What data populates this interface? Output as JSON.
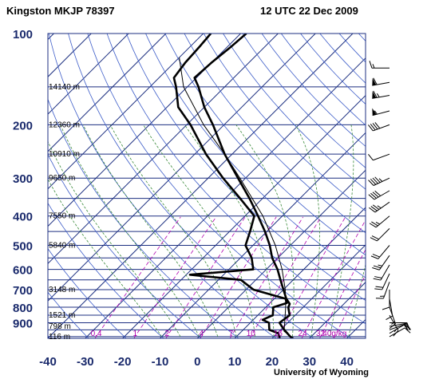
{
  "header": {
    "station": "Kingston MKJP 78397",
    "time": "12 UTC 22 Dec 2009",
    "credit": "University of Wyoming"
  },
  "chart_data": {
    "type": "skew-t log-p sounding",
    "title": "",
    "xlabel": "",
    "ylabel": "",
    "pressure_ticks": [
      100,
      200,
      300,
      400,
      500,
      600,
      700,
      800,
      900
    ],
    "temperature_ticks": [
      -40,
      -30,
      -20,
      -10,
      0,
      10,
      20,
      30,
      40
    ],
    "pressure_range_hPa": [
      1013,
      100
    ],
    "temperature_range_C_at_bottom": [
      -40,
      45
    ],
    "height_labels": [
      {
        "p": 150,
        "label": "14140 m"
      },
      {
        "p": 200,
        "label": "12360 m"
      },
      {
        "p": 250,
        "label": "10910 m"
      },
      {
        "p": 300,
        "label": "9650 m"
      },
      {
        "p": 400,
        "label": "7550 m"
      },
      {
        "p": 500,
        "label": "5840 m"
      },
      {
        "p": 700,
        "label": "3148 m"
      },
      {
        "p": 850,
        "label": "1521 m"
      },
      {
        "p": 925,
        "label": "798 m"
      },
      {
        "p": 1000,
        "label": "116 m"
      }
    ],
    "mixing_ratio_labels": [
      "0.4",
      "1",
      "2",
      "4",
      "7",
      "10",
      "16",
      "24",
      "32",
      "40g/kg"
    ],
    "mixing_ratio_values": [
      0.4,
      1,
      2,
      4,
      7,
      10,
      16,
      24,
      32,
      40
    ],
    "temperature_profile": [
      {
        "p": 1013,
        "t": 25.6
      },
      {
        "p": 1000,
        "t": 24.4
      },
      {
        "p": 950,
        "t": 21.0
      },
      {
        "p": 925,
        "t": 19.4
      },
      {
        "p": 900,
        "t": 17.8
      },
      {
        "p": 850,
        "t": 18.5
      },
      {
        "p": 800,
        "t": 16.0
      },
      {
        "p": 780,
        "t": 15.5
      },
      {
        "p": 750,
        "t": 13.2
      },
      {
        "p": 700,
        "t": 10.0
      },
      {
        "p": 650,
        "t": 6.6
      },
      {
        "p": 600,
        "t": 3.0
      },
      {
        "p": 550,
        "t": -1.5
      },
      {
        "p": 500,
        "t": -5.5
      },
      {
        "p": 450,
        "t": -10.5
      },
      {
        "p": 400,
        "t": -16.5
      },
      {
        "p": 350,
        "t": -23.5
      },
      {
        "p": 300,
        "t": -32.0
      },
      {
        "p": 250,
        "t": -42.0
      },
      {
        "p": 200,
        "t": -53.0
      },
      {
        "p": 175,
        "t": -60.0
      },
      {
        "p": 150,
        "t": -67.0
      },
      {
        "p": 140,
        "t": -70.5
      },
      {
        "p": 125,
        "t": -70.0
      },
      {
        "p": 110,
        "t": -69.0
      },
      {
        "p": 100,
        "t": -68.5
      }
    ],
    "dewpoint_profile": [
      {
        "p": 1013,
        "t": 22.0
      },
      {
        "p": 1000,
        "t": 21.5
      },
      {
        "p": 975,
        "t": 20.3
      },
      {
        "p": 950,
        "t": 17.0
      },
      {
        "p": 925,
        "t": 16.0
      },
      {
        "p": 900,
        "t": 15.0
      },
      {
        "p": 880,
        "t": 12.5
      },
      {
        "p": 850,
        "t": 14.0
      },
      {
        "p": 800,
        "t": 12.0
      },
      {
        "p": 775,
        "t": 14.5
      },
      {
        "p": 750,
        "t": 13.0
      },
      {
        "p": 700,
        "t": 2.0
      },
      {
        "p": 650,
        "t": -4.0
      },
      {
        "p": 625,
        "t": -19.0
      },
      {
        "p": 600,
        "t": -3.5
      },
      {
        "p": 550,
        "t": -7.0
      },
      {
        "p": 500,
        "t": -12.0
      },
      {
        "p": 450,
        "t": -14.5
      },
      {
        "p": 400,
        "t": -17.5
      },
      {
        "p": 350,
        "t": -26.0
      },
      {
        "p": 300,
        "t": -36.0
      },
      {
        "p": 250,
        "t": -47.0
      },
      {
        "p": 200,
        "t": -59.0
      },
      {
        "p": 175,
        "t": -67.0
      },
      {
        "p": 150,
        "t": -73.0
      },
      {
        "p": 140,
        "t": -76.0
      },
      {
        "p": 125,
        "t": -77.0
      },
      {
        "p": 110,
        "t": -77.5
      },
      {
        "p": 100,
        "t": -78.0
      }
    ],
    "parcel_profile": [
      {
        "p": 1013,
        "t": 25.6
      },
      {
        "p": 960,
        "t": 21.3
      },
      {
        "p": 900,
        "t": 19.2
      },
      {
        "p": 800,
        "t": 15.3
      },
      {
        "p": 700,
        "t": 10.5
      },
      {
        "p": 600,
        "t": 4.2
      },
      {
        "p": 500,
        "t": -4.0
      },
      {
        "p": 400,
        "t": -15.2
      },
      {
        "p": 300,
        "t": -31.5
      },
      {
        "p": 250,
        "t": -42.0
      },
      {
        "p": 200,
        "t": -55.5
      },
      {
        "p": 150,
        "t": -71.0
      },
      {
        "p": 120,
        "t": -80.0
      }
    ],
    "wind_barbs": [
      {
        "p": 130,
        "dir": 270,
        "kt": 15
      },
      {
        "p": 145,
        "dir": 260,
        "kt": 60
      },
      {
        "p": 160,
        "dir": 260,
        "kt": 65
      },
      {
        "p": 180,
        "dir": 255,
        "kt": 55
      },
      {
        "p": 200,
        "dir": 250,
        "kt": 40
      },
      {
        "p": 250,
        "dir": 250,
        "kt": 10
      },
      {
        "p": 300,
        "dir": 245,
        "kt": 45
      },
      {
        "p": 330,
        "dir": 240,
        "kt": 40
      },
      {
        "p": 360,
        "dir": 235,
        "kt": 35
      },
      {
        "p": 400,
        "dir": 230,
        "kt": 25
      },
      {
        "p": 440,
        "dir": 225,
        "kt": 20
      },
      {
        "p": 500,
        "dir": 220,
        "kt": 20
      },
      {
        "p": 540,
        "dir": 215,
        "kt": 25
      },
      {
        "p": 580,
        "dir": 210,
        "kt": 20
      },
      {
        "p": 620,
        "dir": 205,
        "kt": 20
      },
      {
        "p": 660,
        "dir": 200,
        "kt": 15
      },
      {
        "p": 700,
        "dir": 180,
        "kt": 10
      },
      {
        "p": 750,
        "dir": 170,
        "kt": 10
      },
      {
        "p": 800,
        "dir": 160,
        "kt": 15
      },
      {
        "p": 850,
        "dir": 150,
        "kt": 15
      },
      {
        "p": 900,
        "dir": 90,
        "kt": 20
      },
      {
        "p": 925,
        "dir": 80,
        "kt": 20
      },
      {
        "p": 950,
        "dir": 70,
        "kt": 15
      },
      {
        "p": 975,
        "dir": 60,
        "kt": 10
      },
      {
        "p": 1000,
        "dir": 60,
        "kt": 10
      }
    ],
    "colors": {
      "isobar": "#1c2f80",
      "isotherm": "#1c2f80",
      "dry_adiabat": "#3c5cc8",
      "moist_adiabat": "#3a8a3a",
      "mixing_ratio": "#b000b0",
      "sounding": "#000000"
    }
  }
}
